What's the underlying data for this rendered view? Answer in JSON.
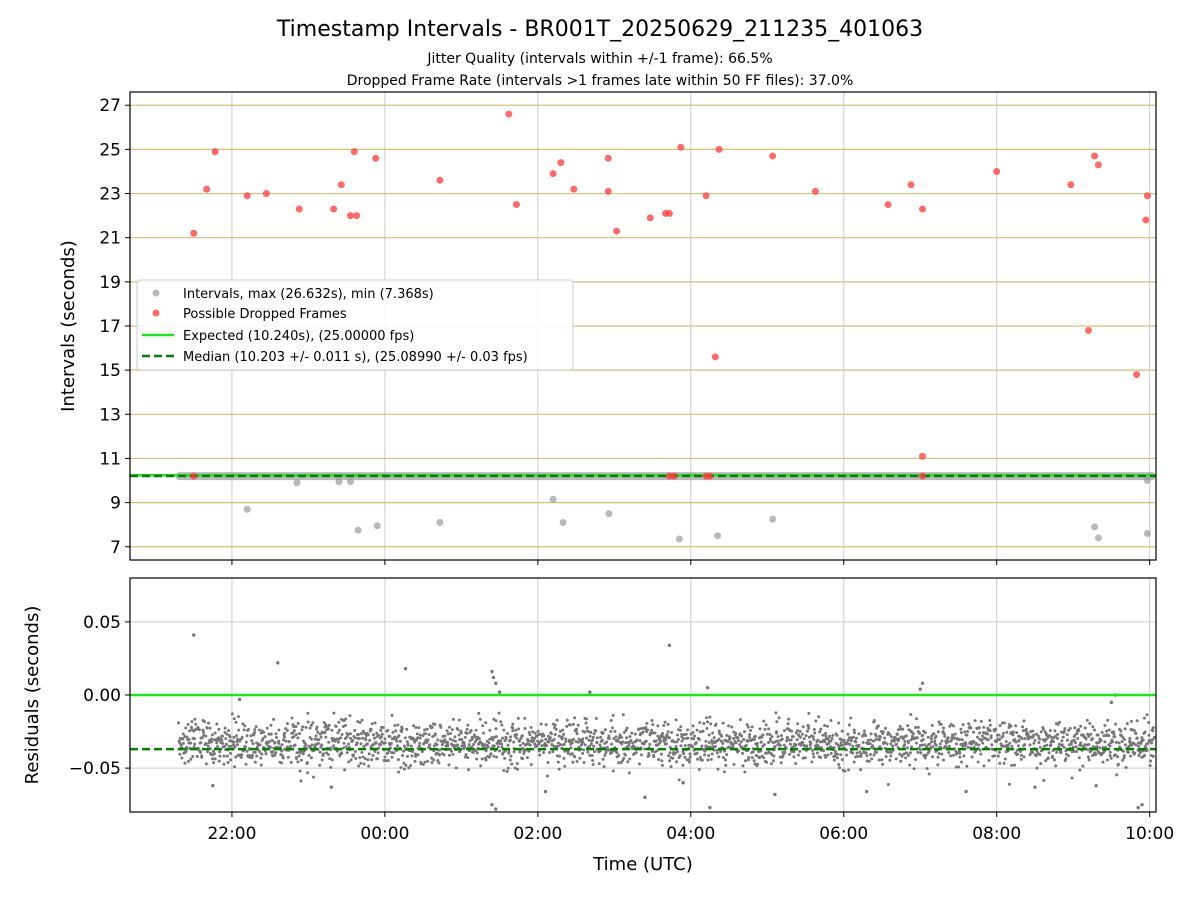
{
  "title": "Timestamp Intervals - BR001T_20250629_211235_401063",
  "subtitle_line1": "Jitter Quality (intervals within +/-1 frame): 66.5%",
  "subtitle_line2": "Dropped Frame Rate (intervals >1 frames late within 50 FF files): 37.0%",
  "colors": {
    "normal_points": "#8a8a8a",
    "dropped_points": "#ff3b3b",
    "expected_line": "#22e022",
    "median_line": "#0a7a0a",
    "hgrid_top": "#d2bf80",
    "grid": "#cccccc",
    "residual_points": "#777777"
  },
  "chart_data": [
    {
      "type": "scatter",
      "ylabel": "Intervals (seconds)",
      "xlim_hours": [
        20.667,
        34.083
      ],
      "ylim": [
        6.4,
        27.6
      ],
      "yticks": [
        "7",
        "9",
        "11",
        "13",
        "15",
        "17",
        "19",
        "21",
        "23",
        "25",
        "27"
      ],
      "legend_position": "center-left",
      "legend": [
        "Intervals, max (26.632s), min (7.368s)",
        "Possible Dropped Frames",
        "Expected (10.240s), (25.00000 fps)",
        "Median (10.203 +/- 0.011 s), (25.08990 +/- 0.03 fps)"
      ],
      "expected": 10.24,
      "median": 10.203,
      "normal_band": {
        "x_start_hours": 21.3,
        "x_end_hours": 34.083,
        "value": 10.2
      },
      "normal_outliers": [
        [
          22.2,
          8.7
        ],
        [
          22.85,
          9.9
        ],
        [
          23.4,
          9.95
        ],
        [
          23.55,
          9.95
        ],
        [
          23.65,
          7.75
        ],
        [
          23.9,
          7.95
        ],
        [
          24.72,
          8.1
        ],
        [
          26.2,
          9.15
        ],
        [
          26.33,
          8.1
        ],
        [
          26.93,
          8.5
        ],
        [
          27.85,
          7.35
        ],
        [
          28.35,
          7.5
        ],
        [
          29.07,
          8.25
        ],
        [
          33.28,
          7.9
        ],
        [
          33.33,
          7.4
        ],
        [
          33.97,
          7.6
        ],
        [
          33.97,
          10.0
        ]
      ],
      "dropped": [
        [
          21.5,
          21.2
        ],
        [
          21.67,
          23.2
        ],
        [
          21.78,
          24.9
        ],
        [
          22.2,
          22.9
        ],
        [
          22.45,
          23.0
        ],
        [
          22.88,
          22.3
        ],
        [
          23.33,
          22.3
        ],
        [
          23.43,
          23.4
        ],
        [
          23.55,
          22.0
        ],
        [
          23.6,
          24.9
        ],
        [
          23.63,
          22.0
        ],
        [
          23.88,
          24.6
        ],
        [
          24.72,
          23.6
        ],
        [
          25.62,
          26.6
        ],
        [
          25.72,
          22.5
        ],
        [
          26.2,
          23.9
        ],
        [
          26.3,
          24.4
        ],
        [
          26.47,
          23.2
        ],
        [
          26.92,
          24.6
        ],
        [
          26.92,
          23.1
        ],
        [
          27.03,
          21.3
        ],
        [
          27.47,
          21.9
        ],
        [
          27.67,
          22.1
        ],
        [
          27.72,
          22.1
        ],
        [
          27.87,
          25.1
        ],
        [
          28.2,
          22.9
        ],
        [
          28.32,
          15.6
        ],
        [
          28.37,
          25.0
        ],
        [
          29.07,
          24.7
        ],
        [
          29.63,
          23.1
        ],
        [
          30.58,
          22.5
        ],
        [
          30.88,
          23.4
        ],
        [
          31.03,
          22.3
        ],
        [
          31.03,
          11.1
        ],
        [
          32.0,
          24.0
        ],
        [
          32.97,
          23.4
        ],
        [
          33.2,
          16.8
        ],
        [
          33.28,
          24.7
        ],
        [
          33.33,
          24.3
        ],
        [
          33.83,
          14.8
        ],
        [
          33.95,
          21.8
        ],
        [
          33.97,
          22.9
        ],
        [
          21.5,
          10.2
        ],
        [
          27.72,
          10.2
        ],
        [
          27.78,
          10.2
        ],
        [
          28.2,
          10.2
        ],
        [
          28.25,
          10.2
        ],
        [
          31.03,
          10.2
        ]
      ]
    },
    {
      "type": "scatter",
      "ylabel": "Residuals (seconds)",
      "xlabel": "Time (UTC)",
      "xlim_hours": [
        20.667,
        34.083
      ],
      "ylim": [
        -0.08,
        0.08
      ],
      "yticks": [
        "−0.05",
        "0.00",
        "0.05"
      ],
      "xticks": [
        "22:00",
        "00:00",
        "02:00",
        "04:00",
        "06:00",
        "08:00",
        "10:00"
      ],
      "xtick_hours": [
        22,
        24,
        26,
        28,
        30,
        32,
        34
      ],
      "expected_residual": 0.0,
      "median_residual": -0.037,
      "point_count": 2400,
      "residual_center": -0.033,
      "residual_spread": 0.014,
      "outliers": [
        [
          21.5,
          0.041
        ],
        [
          22.6,
          0.022
        ],
        [
          24.27,
          0.018
        ],
        [
          25.4,
          0.016
        ],
        [
          25.42,
          0.012
        ],
        [
          25.45,
          0.008
        ],
        [
          27.72,
          0.034
        ],
        [
          28.22,
          0.005
        ],
        [
          31.03,
          0.008
        ],
        [
          31.0,
          0.004
        ],
        [
          22.1,
          -0.003
        ],
        [
          25.5,
          0.002
        ],
        [
          26.68,
          0.002
        ],
        [
          33.5,
          -0.005
        ],
        [
          33.55,
          0.0
        ],
        [
          25.4,
          -0.075
        ],
        [
          25.45,
          -0.078
        ],
        [
          28.25,
          -0.077
        ],
        [
          33.85,
          -0.077
        ],
        [
          33.9,
          -0.075
        ],
        [
          21.75,
          -0.062
        ],
        [
          23.3,
          -0.063
        ],
        [
          26.1,
          -0.066
        ],
        [
          27.4,
          -0.07
        ],
        [
          29.1,
          -0.068
        ],
        [
          30.3,
          -0.066
        ],
        [
          31.6,
          -0.066
        ],
        [
          32.5,
          -0.063
        ],
        [
          33.3,
          -0.062
        ],
        [
          27.9,
          -0.06
        ]
      ]
    }
  ]
}
